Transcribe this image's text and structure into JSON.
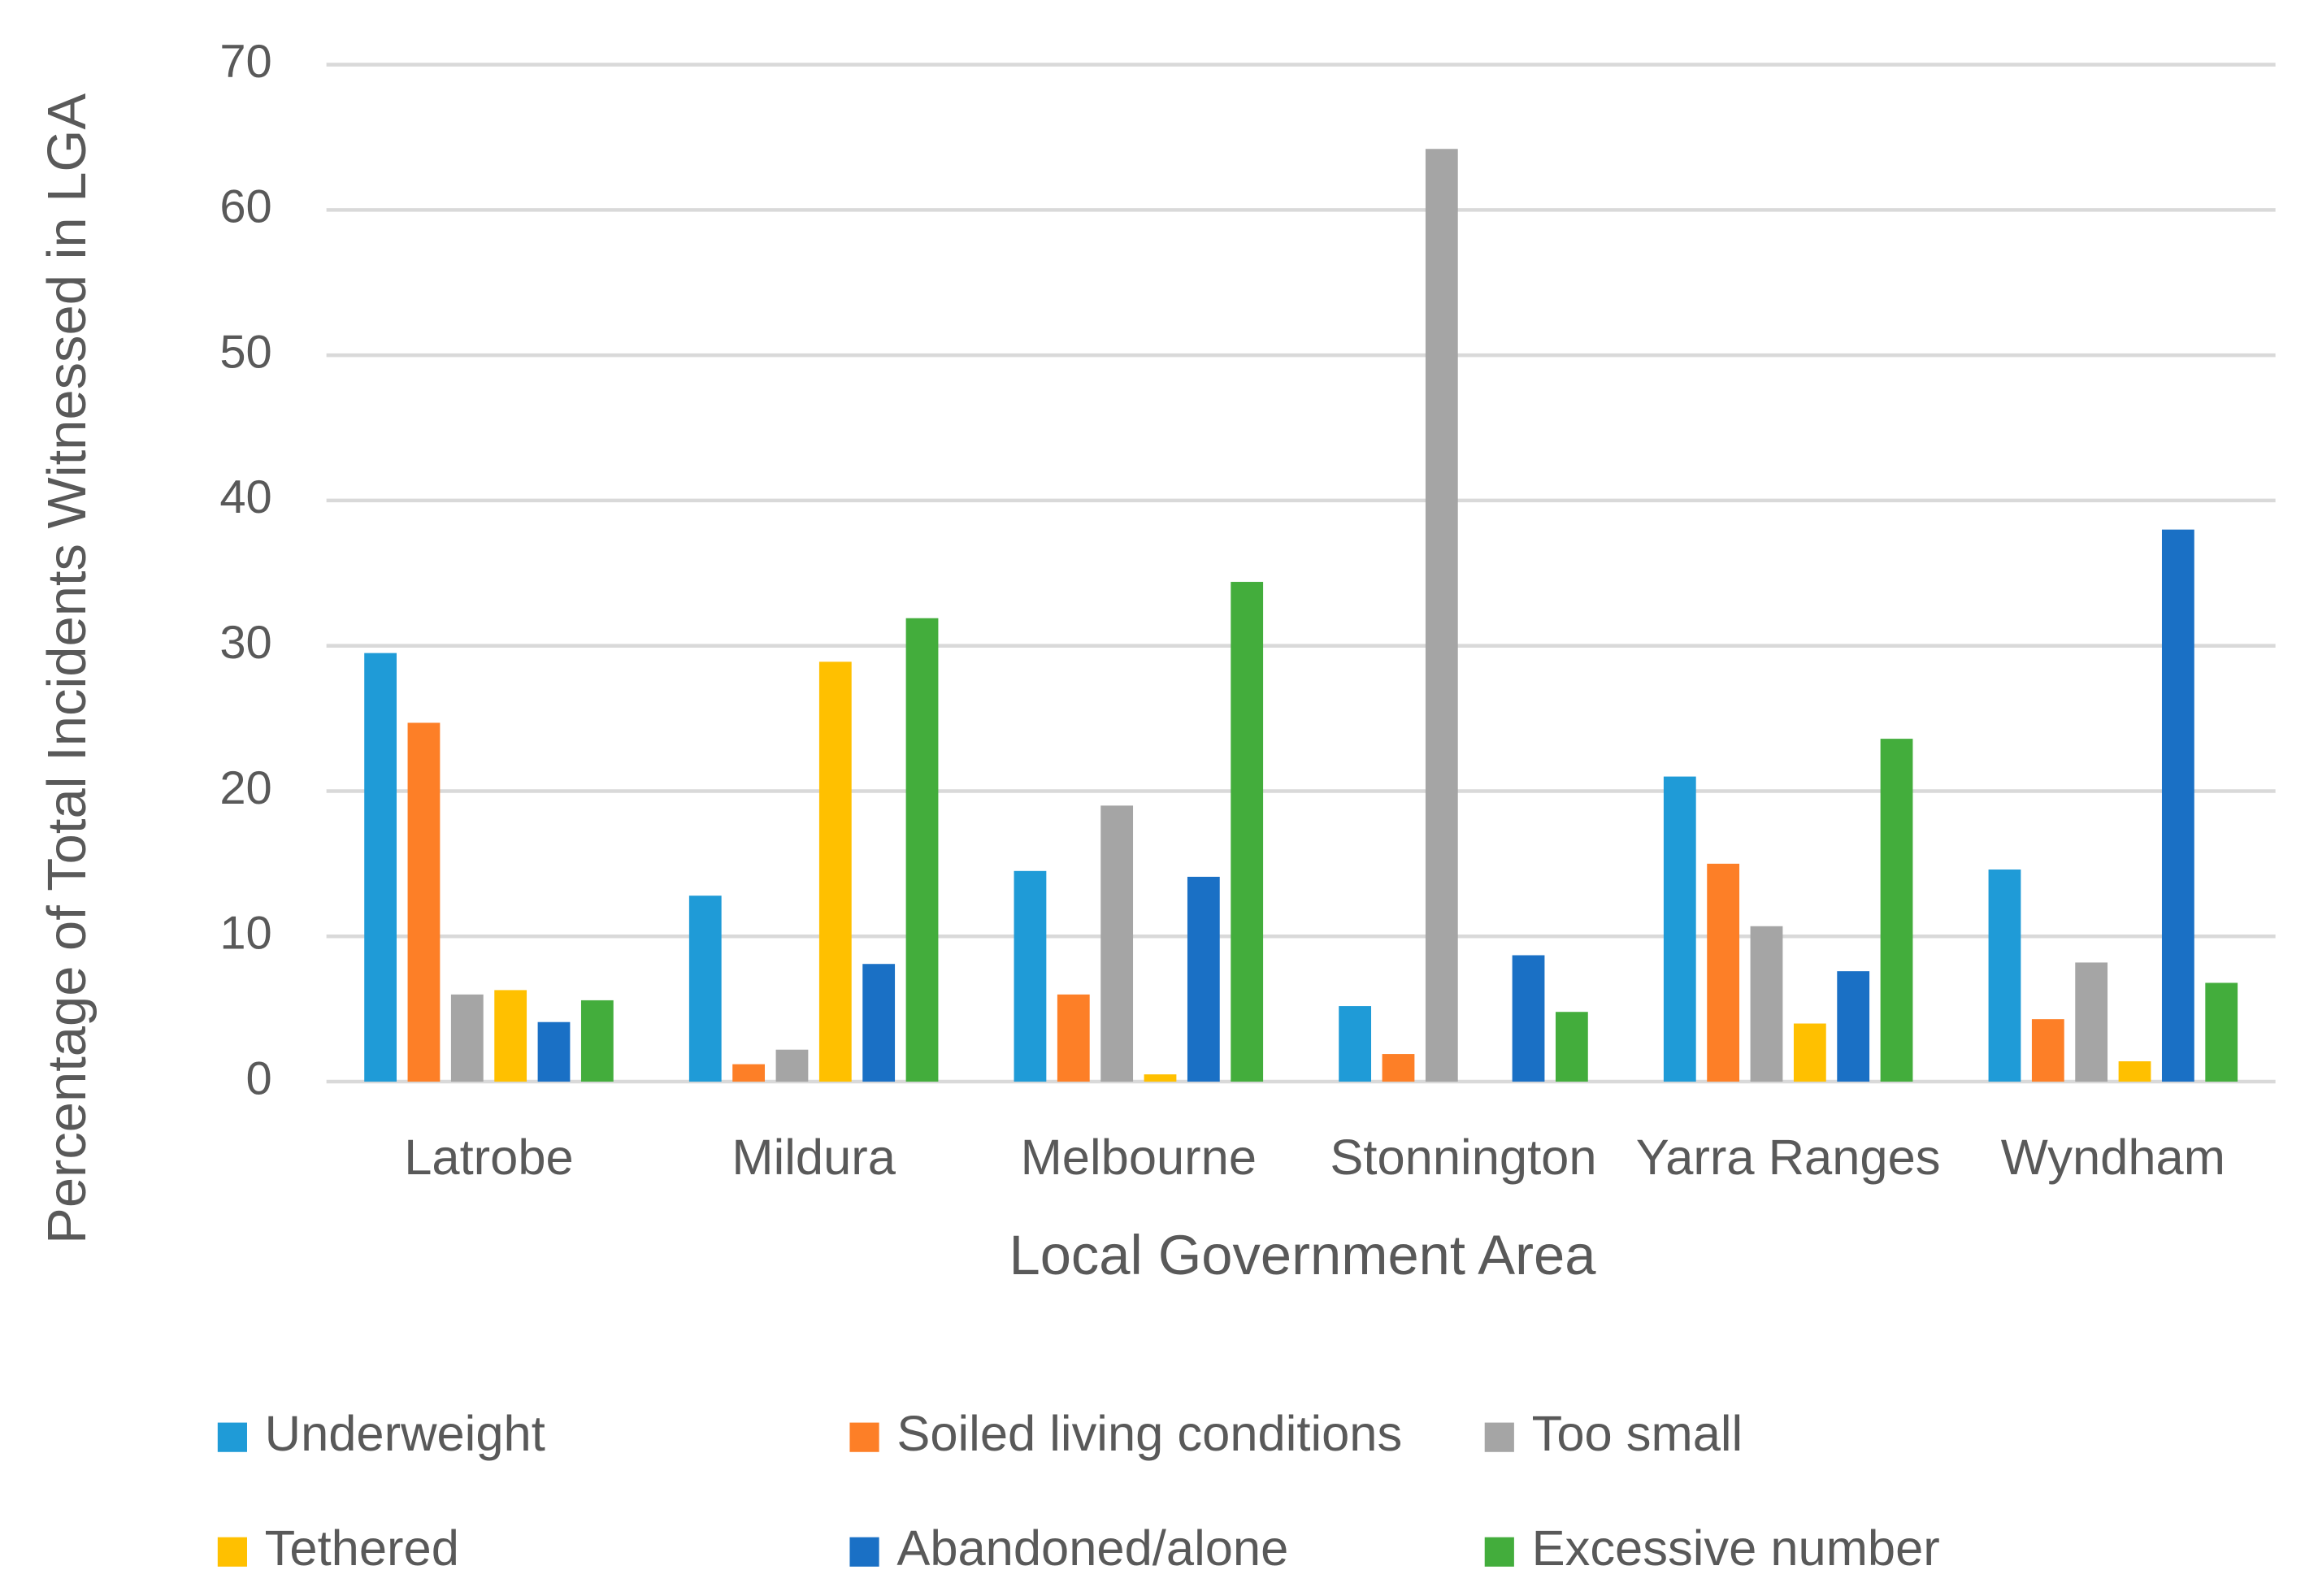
{
  "chart_data": {
    "type": "bar",
    "x_label": "Local Government Area",
    "y_label": "Percentage of Total Incidents Witnessed in LGA",
    "categories": [
      "Latrobe",
      "Mildura",
      "Melbourne",
      "Stonnington",
      "Yarra Ranges",
      "Wyndham"
    ],
    "series": [
      {
        "name": "Underweight",
        "color": "#1f9bd7",
        "values": [
          29.5,
          12.8,
          14.5,
          5.2,
          21.0,
          14.6
        ]
      },
      {
        "name": "Soiled living conditions",
        "color": "#fd7f27",
        "values": [
          24.7,
          1.2,
          6.0,
          1.9,
          15.0,
          4.3
        ]
      },
      {
        "name": "Too small",
        "color": "#a5a5a5",
        "values": [
          6.0,
          2.2,
          19.0,
          64.2,
          10.7,
          8.2
        ]
      },
      {
        "name": "Tethered",
        "color": "#ffc000",
        "values": [
          6.3,
          28.9,
          0.5,
          0,
          4.0,
          1.4
        ]
      },
      {
        "name": "Abandoned/alone",
        "color": "#1a70c5",
        "values": [
          4.1,
          8.1,
          14.1,
          8.7,
          7.6,
          38.0
        ]
      },
      {
        "name": "Excessive number",
        "color": "#43ad3c",
        "values": [
          5.6,
          31.9,
          34.4,
          4.8,
          23.6,
          6.8
        ]
      }
    ],
    "ylim": [
      0,
      70
    ],
    "yticks": [
      0,
      10,
      20,
      30,
      40,
      50,
      60,
      70
    ],
    "grid": true,
    "legend": "bottom"
  }
}
